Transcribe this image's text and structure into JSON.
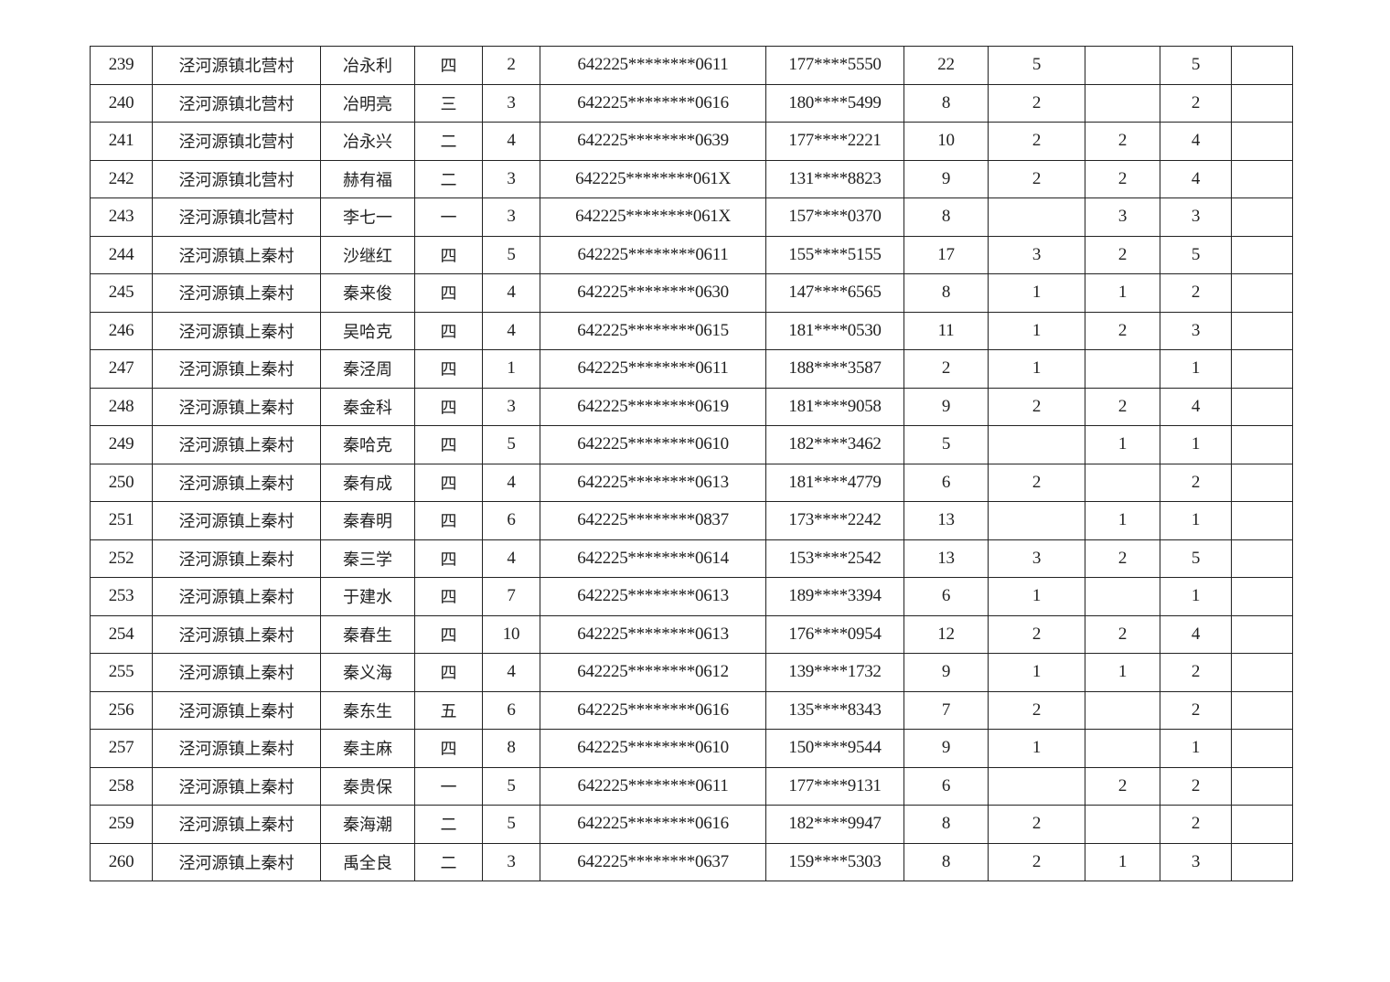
{
  "table": {
    "rows": [
      [
        "239",
        "泾河源镇北营村",
        "冶永利",
        "四",
        "2",
        "642225********0611",
        "177****5550",
        "22",
        "5",
        "",
        "5",
        ""
      ],
      [
        "240",
        "泾河源镇北营村",
        "冶明亮",
        "三",
        "3",
        "642225********0616",
        "180****5499",
        "8",
        "2",
        "",
        "2",
        ""
      ],
      [
        "241",
        "泾河源镇北营村",
        "冶永兴",
        "二",
        "4",
        "642225********0639",
        "177****2221",
        "10",
        "2",
        "2",
        "4",
        ""
      ],
      [
        "242",
        "泾河源镇北营村",
        "赫有福",
        "二",
        "3",
        "642225********061X",
        "131****8823",
        "9",
        "2",
        "2",
        "4",
        ""
      ],
      [
        "243",
        "泾河源镇北营村",
        "李七一",
        "一",
        "3",
        "642225********061X",
        "157****0370",
        "8",
        "",
        "3",
        "3",
        ""
      ],
      [
        "244",
        "泾河源镇上秦村",
        "沙继红",
        "四",
        "5",
        "642225********0611",
        "155****5155",
        "17",
        "3",
        "2",
        "5",
        ""
      ],
      [
        "245",
        "泾河源镇上秦村",
        "秦来俊",
        "四",
        "4",
        "642225********0630",
        "147****6565",
        "8",
        "1",
        "1",
        "2",
        ""
      ],
      [
        "246",
        "泾河源镇上秦村",
        "吴哈克",
        "四",
        "4",
        "642225********0615",
        "181****0530",
        "11",
        "1",
        "2",
        "3",
        ""
      ],
      [
        "247",
        "泾河源镇上秦村",
        "秦泾周",
        "四",
        "1",
        "642225********0611",
        "188****3587",
        "2",
        "1",
        "",
        "1",
        ""
      ],
      [
        "248",
        "泾河源镇上秦村",
        "秦金科",
        "四",
        "3",
        "642225********0619",
        "181****9058",
        "9",
        "2",
        "2",
        "4",
        ""
      ],
      [
        "249",
        "泾河源镇上秦村",
        "秦哈克",
        "四",
        "5",
        "642225********0610",
        "182****3462",
        "5",
        "",
        "1",
        "1",
        ""
      ],
      [
        "250",
        "泾河源镇上秦村",
        "秦有成",
        "四",
        "4",
        "642225********0613",
        "181****4779",
        "6",
        "2",
        "",
        "2",
        ""
      ],
      [
        "251",
        "泾河源镇上秦村",
        "秦春明",
        "四",
        "6",
        "642225********0837",
        "173****2242",
        "13",
        "",
        "1",
        "1",
        ""
      ],
      [
        "252",
        "泾河源镇上秦村",
        "秦三学",
        "四",
        "4",
        "642225********0614",
        "153****2542",
        "13",
        "3",
        "2",
        "5",
        ""
      ],
      [
        "253",
        "泾河源镇上秦村",
        "于建水",
        "四",
        "7",
        "642225********0613",
        "189****3394",
        "6",
        "1",
        "",
        "1",
        ""
      ],
      [
        "254",
        "泾河源镇上秦村",
        "秦春生",
        "四",
        "10",
        "642225********0613",
        "176****0954",
        "12",
        "2",
        "2",
        "4",
        ""
      ],
      [
        "255",
        "泾河源镇上秦村",
        "秦义海",
        "四",
        "4",
        "642225********0612",
        "139****1732",
        "9",
        "1",
        "1",
        "2",
        ""
      ],
      [
        "256",
        "泾河源镇上秦村",
        "秦东生",
        "五",
        "6",
        "642225********0616",
        "135****8343",
        "7",
        "2",
        "",
        "2",
        ""
      ],
      [
        "257",
        "泾河源镇上秦村",
        "秦主麻",
        "四",
        "8",
        "642225********0610",
        "150****9544",
        "9",
        "1",
        "",
        "1",
        ""
      ],
      [
        "258",
        "泾河源镇上秦村",
        "秦贵保",
        "一",
        "5",
        "642225********0611",
        "177****9131",
        "6",
        "",
        "2",
        "2",
        ""
      ],
      [
        "259",
        "泾河源镇上秦村",
        "秦海潮",
        "二",
        "5",
        "642225********0616",
        "182****9947",
        "8",
        "2",
        "",
        "2",
        ""
      ],
      [
        "260",
        "泾河源镇上秦村",
        "禹全良",
        "二",
        "3",
        "642225********0637",
        "159****5303",
        "8",
        "2",
        "1",
        "3",
        ""
      ]
    ]
  }
}
